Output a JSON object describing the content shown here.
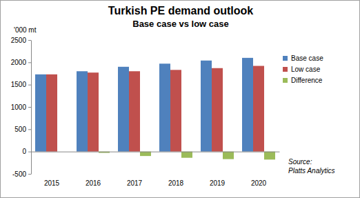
{
  "chart_data": {
    "type": "bar",
    "title": "Turkish PE demand outlook",
    "subtitle": "Base case vs low case",
    "y_label": "'000 mt",
    "categories": [
      "2015",
      "2016",
      "2017",
      "2018",
      "2019",
      "2020"
    ],
    "series": [
      {
        "name": "Base case",
        "color": "#4f81bd",
        "values": [
          1730,
          1800,
          1900,
          1970,
          2040,
          2100
        ]
      },
      {
        "name": "Low case",
        "color": "#c0504d",
        "values": [
          1730,
          1770,
          1800,
          1830,
          1870,
          1920
        ]
      },
      {
        "name": "Difference",
        "color": "#9bbb59",
        "values": [
          0,
          -30,
          -100,
          -140,
          -170,
          -180
        ]
      }
    ],
    "ylim": [
      -500,
      2500
    ],
    "yticks": [
      -500,
      0,
      500,
      1000,
      1500,
      2000,
      2500
    ],
    "grid": false,
    "legend": "right",
    "annotations": [
      "Source:",
      "Platts Analytics"
    ]
  }
}
